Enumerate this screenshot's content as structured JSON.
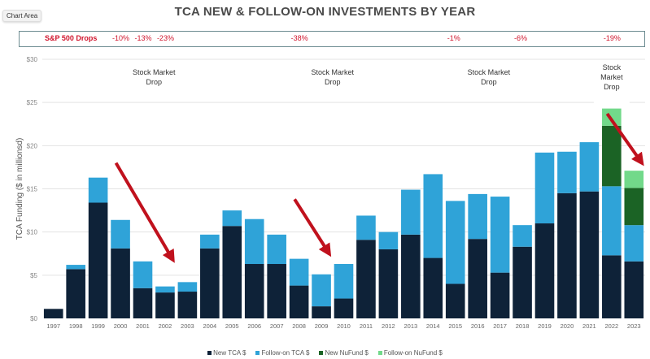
{
  "chart_area_tag": "Chart Area",
  "sp500": {
    "title": "S&P 500 Drops",
    "drops": [
      {
        "year": "2000",
        "label": "-10%"
      },
      {
        "year": "2001",
        "label": "-13%"
      },
      {
        "year": "2002",
        "label": "-23%"
      },
      {
        "year": "2008",
        "label": "-38%"
      },
      {
        "year": "2015",
        "label": "-1%"
      },
      {
        "year": "2018",
        "label": "-6%"
      },
      {
        "year": "2022",
        "label": "-19%"
      }
    ]
  },
  "colors": {
    "new_tca": "#0e2238",
    "followon_tca": "#2fa3d8",
    "new_nufund": "#1b6325",
    "followon_nufund": "#72d98a",
    "arrow": "#c0111d",
    "sp_text": "#d0142c"
  },
  "chart_data": {
    "type": "bar",
    "stacked": true,
    "title": "TCA NEW & FOLLOW-ON INVESTMENTS BY YEAR",
    "xlabel": "",
    "ylabel": "TCA Funding ($ in millionsd)",
    "ylim": [
      0,
      30
    ],
    "yticks": [
      0,
      5,
      10,
      15,
      20,
      25,
      30
    ],
    "ytick_labels": [
      "$0",
      "$5",
      "$10",
      "$15",
      "$20",
      "$25",
      "$30"
    ],
    "grid": true,
    "legend_position": "bottom",
    "categories": [
      "1997",
      "1998",
      "1999",
      "2000",
      "2001",
      "2002",
      "2003",
      "2004",
      "2005",
      "2006",
      "2007",
      "2008",
      "2009",
      "2010",
      "2011",
      "2012",
      "2013",
      "2014",
      "2015",
      "2016",
      "2017",
      "2018",
      "2019",
      "2020",
      "2021",
      "2022",
      "2023"
    ],
    "series": [
      {
        "name": "New TCA $",
        "color_key": "new_tca",
        "values": [
          1.1,
          5.7,
          13.4,
          8.1,
          3.5,
          3.0,
          3.1,
          8.1,
          10.7,
          6.3,
          6.3,
          3.8,
          1.4,
          2.3,
          9.1,
          8.0,
          9.7,
          7.0,
          4.0,
          9.2,
          5.3,
          8.3,
          11.0,
          14.5,
          14.7,
          7.3,
          6.6
        ]
      },
      {
        "name": "Follow-on TCA $",
        "color_key": "followon_tca",
        "values": [
          0,
          0.5,
          2.9,
          3.3,
          3.1,
          0.7,
          1.1,
          1.6,
          1.8,
          5.2,
          3.4,
          3.1,
          3.7,
          4.0,
          2.8,
          2.0,
          5.2,
          9.7,
          9.6,
          5.2,
          8.8,
          2.5,
          8.2,
          4.8,
          5.7,
          8.0,
          4.2
        ]
      },
      {
        "name": "New NuFund $",
        "color_key": "new_nufund",
        "values": [
          0,
          0,
          0,
          0,
          0,
          0,
          0,
          0,
          0,
          0,
          0,
          0,
          0,
          0,
          0,
          0,
          0,
          0,
          0,
          0,
          0,
          0,
          0,
          0,
          0,
          7.0,
          4.3
        ]
      },
      {
        "name": "Follow-on NuFund $",
        "color_key": "followon_nufund",
        "values": [
          0,
          0,
          0,
          0,
          0,
          0,
          0,
          0,
          0,
          0,
          0,
          0,
          0,
          0,
          0,
          0,
          0,
          0,
          0,
          0,
          0,
          0,
          0,
          0,
          0,
          2.0,
          2.0
        ]
      }
    ],
    "annotations": [
      {
        "text": [
          "Stock Market",
          "Drop"
        ],
        "near_year": "2001",
        "y_value": 28.2
      },
      {
        "text": [
          "Stock Market",
          "Drop"
        ],
        "near_year": "2009",
        "y_value": 28.2
      },
      {
        "text": [
          "Stock Market",
          "Drop"
        ],
        "near_year": "2016",
        "y_value": 28.2
      },
      {
        "text": [
          "Stock",
          "Market",
          "Drop"
        ],
        "near_year": "2022",
        "y_value": 28.8
      }
    ],
    "arrows": [
      {
        "from": {
          "year": "2000",
          "value": 18.0
        },
        "to": {
          "year": "2002",
          "value": 7.0
        }
      },
      {
        "from": {
          "year": "2008",
          "value": 13.8
        },
        "to": {
          "year": "2009",
          "value": 7.7
        }
      },
      {
        "from": {
          "year": "2022",
          "value": 23.7
        },
        "to": {
          "year": "2023",
          "value": 18.2
        }
      }
    ]
  }
}
